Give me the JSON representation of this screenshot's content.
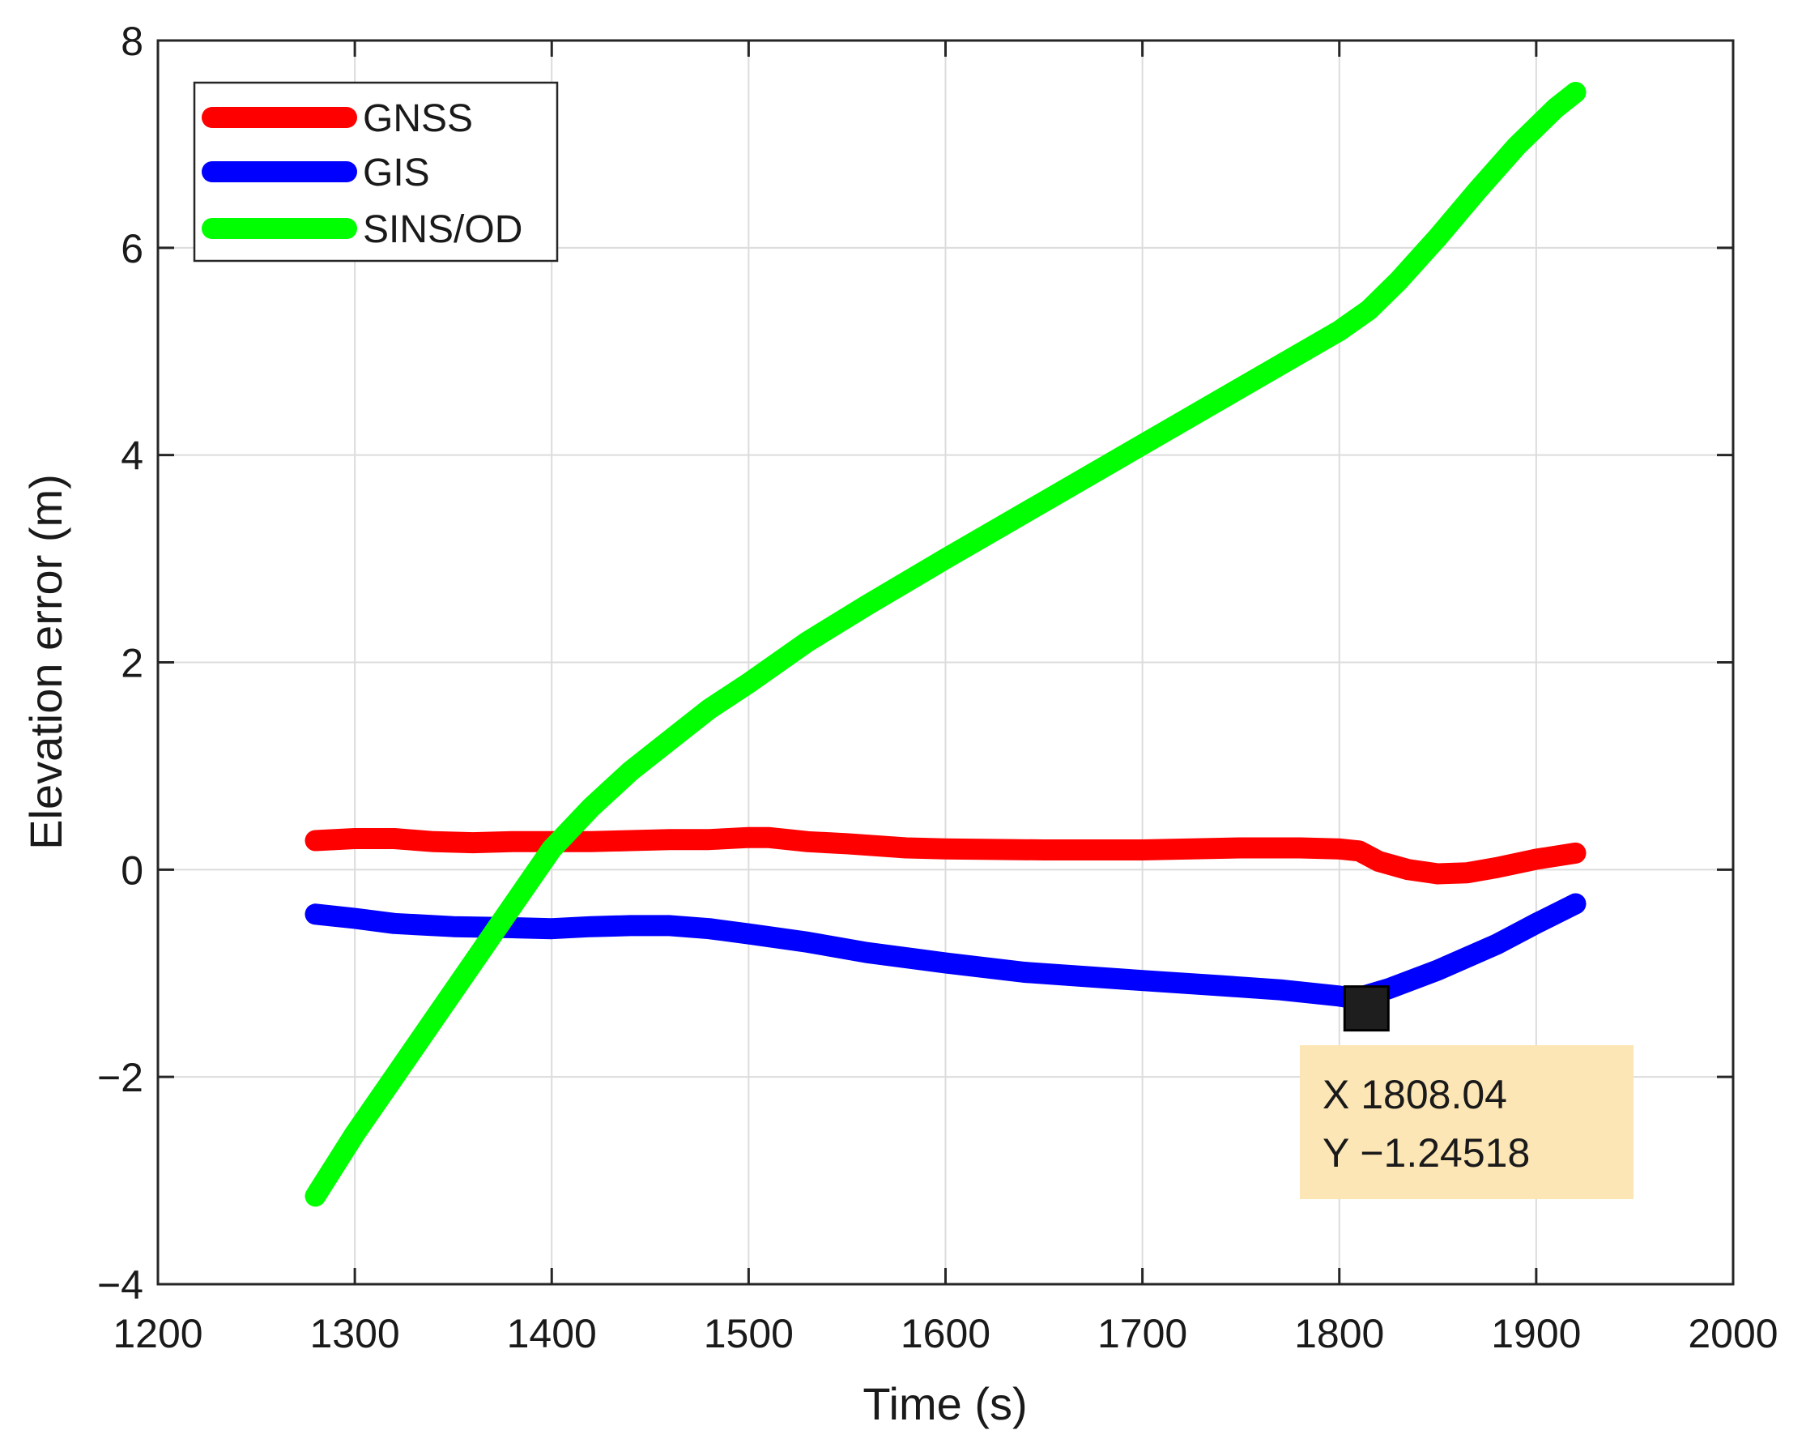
{
  "chart_data": {
    "type": "line",
    "xlabel": "Time (s)",
    "ylabel": "Elevation error (m)",
    "xlim": [
      1200,
      2000
    ],
    "ylim": [
      -4,
      8
    ],
    "xticks": [
      1200,
      1300,
      1400,
      1500,
      1600,
      1700,
      1800,
      1900,
      2000
    ],
    "yticks": [
      -4,
      -2,
      0,
      2,
      4,
      6,
      8
    ],
    "xtick_labels": [
      "1200",
      "1300",
      "1400",
      "1500",
      "1600",
      "1700",
      "1800",
      "1900",
      "2000"
    ],
    "ytick_labels": [
      "−4",
      "−2",
      "0",
      "2",
      "4",
      "6",
      "8"
    ],
    "grid": true,
    "legend_position": "top-left",
    "series": [
      {
        "name": "GNSS",
        "color": "#ff0000",
        "x": [
          1280,
          1300,
          1320,
          1340,
          1360,
          1380,
          1400,
          1420,
          1440,
          1460,
          1480,
          1500,
          1510,
          1530,
          1550,
          1580,
          1600,
          1650,
          1700,
          1750,
          1780,
          1800,
          1810,
          1820,
          1835,
          1850,
          1865,
          1880,
          1900,
          1920
        ],
        "y": [
          0.28,
          0.3,
          0.3,
          0.27,
          0.26,
          0.27,
          0.27,
          0.27,
          0.28,
          0.29,
          0.29,
          0.31,
          0.31,
          0.27,
          0.25,
          0.21,
          0.2,
          0.19,
          0.19,
          0.21,
          0.21,
          0.2,
          0.18,
          0.08,
          0.0,
          -0.04,
          -0.03,
          0.02,
          0.1,
          0.16
        ]
      },
      {
        "name": "GIS",
        "color": "#0000ff",
        "x": [
          1280,
          1300,
          1320,
          1350,
          1380,
          1400,
          1420,
          1440,
          1460,
          1480,
          1500,
          1530,
          1560,
          1600,
          1640,
          1670,
          1700,
          1740,
          1770,
          1800,
          1808.04,
          1825,
          1850,
          1880,
          1900,
          1920
        ],
        "y": [
          -0.43,
          -0.47,
          -0.52,
          -0.55,
          -0.56,
          -0.57,
          -0.55,
          -0.54,
          -0.54,
          -0.57,
          -0.62,
          -0.7,
          -0.8,
          -0.9,
          -0.99,
          -1.03,
          -1.07,
          -1.12,
          -1.16,
          -1.22,
          -1.24518,
          -1.15,
          -0.97,
          -0.72,
          -0.52,
          -0.33
        ]
      },
      {
        "name": "SINS/OD",
        "color": "#00ff00",
        "x": [
          1280,
          1300,
          1320,
          1340,
          1360,
          1380,
          1400,
          1420,
          1440,
          1460,
          1480,
          1500,
          1530,
          1560,
          1600,
          1650,
          1700,
          1750,
          1800,
          1815,
          1830,
          1850,
          1870,
          1890,
          1910,
          1920
        ],
        "y": [
          -3.15,
          -2.55,
          -2.0,
          -1.45,
          -0.9,
          -0.35,
          0.2,
          0.6,
          0.95,
          1.25,
          1.55,
          1.8,
          2.2,
          2.55,
          3.0,
          3.55,
          4.1,
          4.65,
          5.2,
          5.4,
          5.68,
          6.1,
          6.55,
          6.98,
          7.35,
          7.5
        ]
      }
    ],
    "annotations": [
      {
        "type": "datatip",
        "x": 1808.04,
        "y": -1.24518,
        "label_x": "X 1808.04",
        "label_y": "Y −1.24518"
      }
    ]
  }
}
